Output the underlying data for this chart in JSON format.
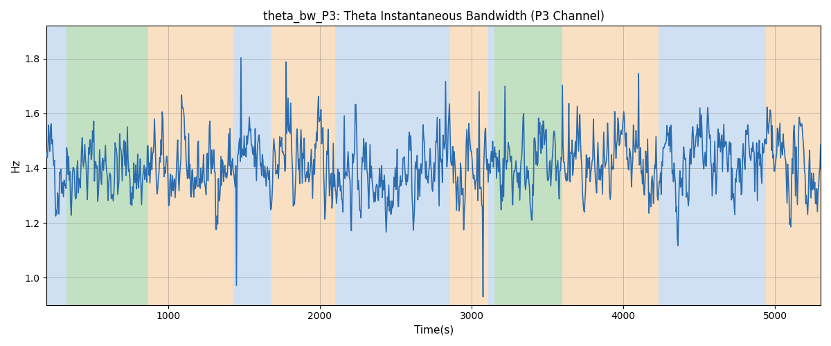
{
  "title": "theta_bw_P3: Theta Instantaneous Bandwidth (P3 Channel)",
  "xlabel": "Time(s)",
  "ylabel": "Hz",
  "xlim": [
    200,
    5300
  ],
  "ylim": [
    0.9,
    1.92
  ],
  "line_color": "#2b6cb0",
  "line_width": 1.2,
  "background_bands": [
    {
      "xmin": 200,
      "xmax": 330,
      "color": "#a8c8e8",
      "alpha": 0.55
    },
    {
      "xmin": 330,
      "xmax": 870,
      "color": "#90c890",
      "alpha": 0.55
    },
    {
      "xmin": 870,
      "xmax": 1430,
      "color": "#f5c890",
      "alpha": 0.55
    },
    {
      "xmin": 1430,
      "xmax": 1620,
      "color": "#a8c8e8",
      "alpha": 0.55
    },
    {
      "xmin": 1620,
      "xmax": 1680,
      "color": "#a8c8e8",
      "alpha": 0.55
    },
    {
      "xmin": 1680,
      "xmax": 2100,
      "color": "#f5c890",
      "alpha": 0.55
    },
    {
      "xmin": 2100,
      "xmax": 2820,
      "color": "#a8c8e8",
      "alpha": 0.55
    },
    {
      "xmin": 2820,
      "xmax": 2860,
      "color": "#a8c8e8",
      "alpha": 0.55
    },
    {
      "xmin": 2860,
      "xmax": 3110,
      "color": "#f5c890",
      "alpha": 0.55
    },
    {
      "xmin": 3110,
      "xmax": 3150,
      "color": "#a8c8e8",
      "alpha": 0.55
    },
    {
      "xmin": 3150,
      "xmax": 3600,
      "color": "#90c890",
      "alpha": 0.55
    },
    {
      "xmin": 3600,
      "xmax": 3760,
      "color": "#f5c890",
      "alpha": 0.55
    },
    {
      "xmin": 3760,
      "xmax": 4230,
      "color": "#f5c890",
      "alpha": 0.55
    },
    {
      "xmin": 4230,
      "xmax": 4860,
      "color": "#a8c8e8",
      "alpha": 0.55
    },
    {
      "xmin": 4860,
      "xmax": 4940,
      "color": "#a8c8e8",
      "alpha": 0.55
    },
    {
      "xmin": 4940,
      "xmax": 5300,
      "color": "#f5c890",
      "alpha": 0.55
    }
  ],
  "grid": true,
  "seed": 42,
  "n_points": 1200,
  "yticks": [
    1.0,
    1.2,
    1.4,
    1.6,
    1.8
  ],
  "xticks": [
    1000,
    2000,
    3000,
    4000,
    5000
  ],
  "title_fontsize": 12,
  "label_fontsize": 11
}
